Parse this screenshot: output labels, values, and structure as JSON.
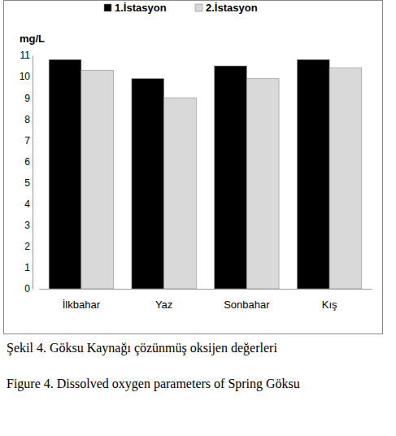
{
  "chart_data": {
    "type": "bar",
    "y_label": "mg/L",
    "categories": [
      "İlkbahar",
      "Yaz",
      "Sonbahar",
      "Kış"
    ],
    "series": [
      {
        "name": "1.İstasyon",
        "color": "#000000",
        "values": [
          10.8,
          9.9,
          10.5,
          10.8
        ]
      },
      {
        "name": "2.İstasyon",
        "color": "#d9d9d9",
        "values": [
          10.3,
          9.0,
          9.9,
          10.4
        ]
      }
    ],
    "ylim": [
      0,
      11
    ],
    "yticks": [
      0,
      1,
      2,
      3,
      4,
      5,
      6,
      7,
      8,
      9,
      10,
      11
    ],
    "grid": false,
    "legend": "top",
    "annotations": [
      "Şekil 4. Göksu Kaynağı çözünmüş oksijen değerleri",
      "Figure 4. Dissolved oxygen parameters of Spring Göksu"
    ]
  }
}
